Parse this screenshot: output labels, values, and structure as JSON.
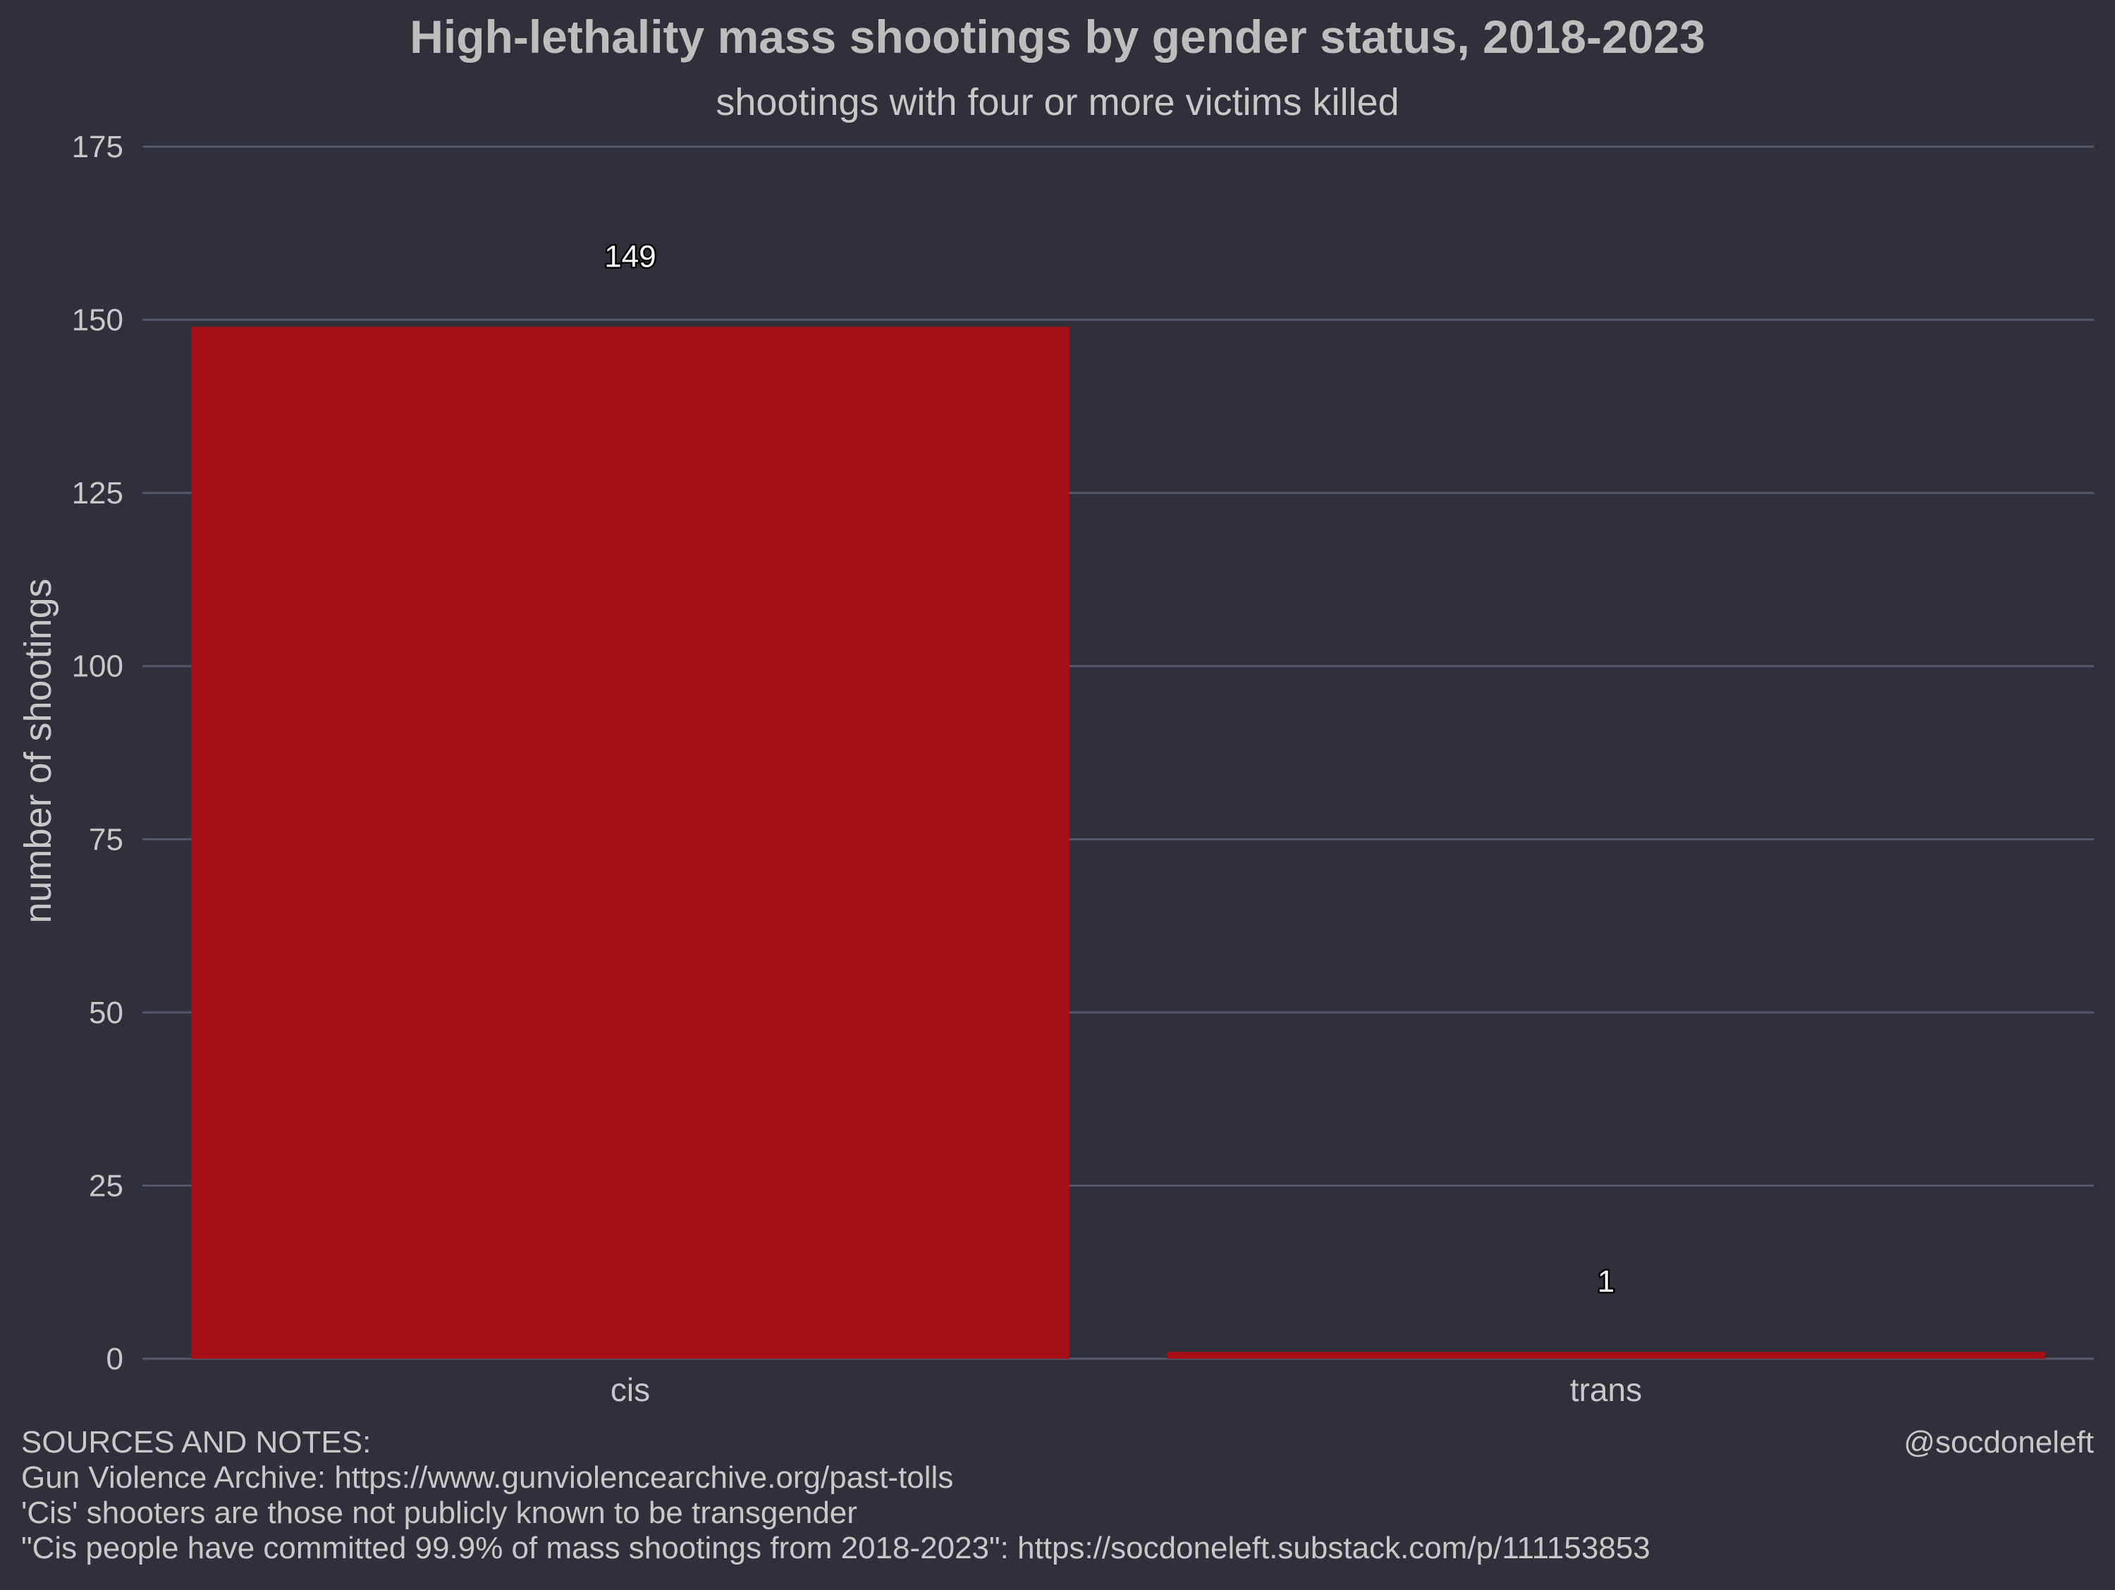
{
  "colors": {
    "background": "#30303a",
    "bar": "#a51016",
    "grid": "#56566a",
    "text": "#c8c8c8",
    "title_text": "#bdbdbd",
    "data_label_fill": "#ffffff",
    "data_label_stroke": "#000000"
  },
  "chart_data": {
    "type": "bar",
    "title": "High-lethality mass shootings by gender status, 2018-2023",
    "subtitle": "shootings with four or more victims killed",
    "xlabel": "",
    "ylabel": "number of shootings",
    "categories": [
      "cis",
      "trans"
    ],
    "values": [
      149,
      1
    ],
    "data_labels": [
      "149",
      "1"
    ],
    "ylim": [
      0,
      175
    ],
    "yticks": [
      0,
      25,
      50,
      75,
      100,
      125,
      150,
      175
    ],
    "grid": true,
    "legend": "none"
  },
  "footer": {
    "notes": [
      "SOURCES AND NOTES:",
      "Gun Violence Archive: https://www.gunviolencearchive.org/past-tolls",
      "'Cis' shooters are those not publicly known to be transgender",
      "\"Cis people have committed 99.9% of mass shootings from 2018-2023\": https://socdoneleft.substack.com/p/111153853"
    ],
    "credit": "@socdoneleft"
  }
}
